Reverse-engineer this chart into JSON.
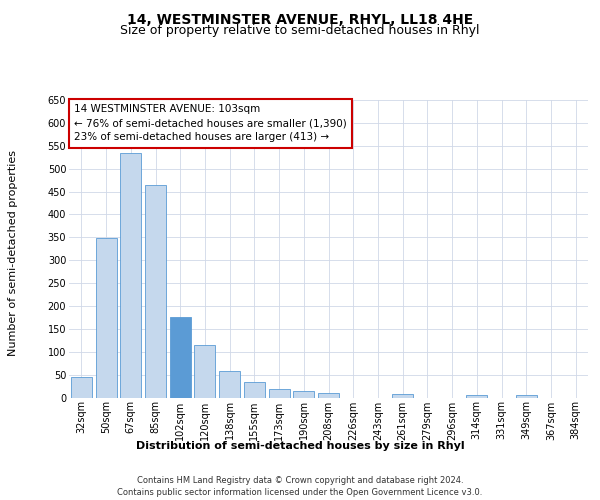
{
  "title": "14, WESTMINSTER AVENUE, RHYL, LL18 4HE",
  "subtitle": "Size of property relative to semi-detached houses in Rhyl",
  "xlabel": "Distribution of semi-detached houses by size in Rhyl",
  "ylabel": "Number of semi-detached properties",
  "categories": [
    "32sqm",
    "50sqm",
    "67sqm",
    "85sqm",
    "102sqm",
    "120sqm",
    "138sqm",
    "155sqm",
    "173sqm",
    "190sqm",
    "208sqm",
    "226sqm",
    "243sqm",
    "261sqm",
    "279sqm",
    "296sqm",
    "314sqm",
    "331sqm",
    "349sqm",
    "367sqm",
    "384sqm"
  ],
  "values": [
    45,
    348,
    535,
    465,
    175,
    115,
    58,
    33,
    18,
    15,
    10,
    0,
    0,
    8,
    0,
    0,
    5,
    0,
    5,
    0,
    0
  ],
  "bar_color_default": "#c5d8ed",
  "bar_color_highlight": "#5b9bd5",
  "bar_edge_color": "#5b9bd5",
  "highlight_index": 4,
  "annotation_text": "14 WESTMINSTER AVENUE: 103sqm\n← 76% of semi-detached houses are smaller (1,390)\n23% of semi-detached houses are larger (413) →",
  "annotation_box_color": "#ffffff",
  "annotation_box_edge": "#cc0000",
  "ylim": [
    0,
    650
  ],
  "yticks": [
    0,
    50,
    100,
    150,
    200,
    250,
    300,
    350,
    400,
    450,
    500,
    550,
    600,
    650
  ],
  "footer": "Contains HM Land Registry data © Crown copyright and database right 2024.\nContains public sector information licensed under the Open Government Licence v3.0.",
  "background_color": "#ffffff",
  "grid_color": "#d0d8e8",
  "title_fontsize": 10,
  "subtitle_fontsize": 9,
  "axis_label_fontsize": 8,
  "tick_fontsize": 7,
  "annotation_fontsize": 7.5,
  "footer_fontsize": 6
}
